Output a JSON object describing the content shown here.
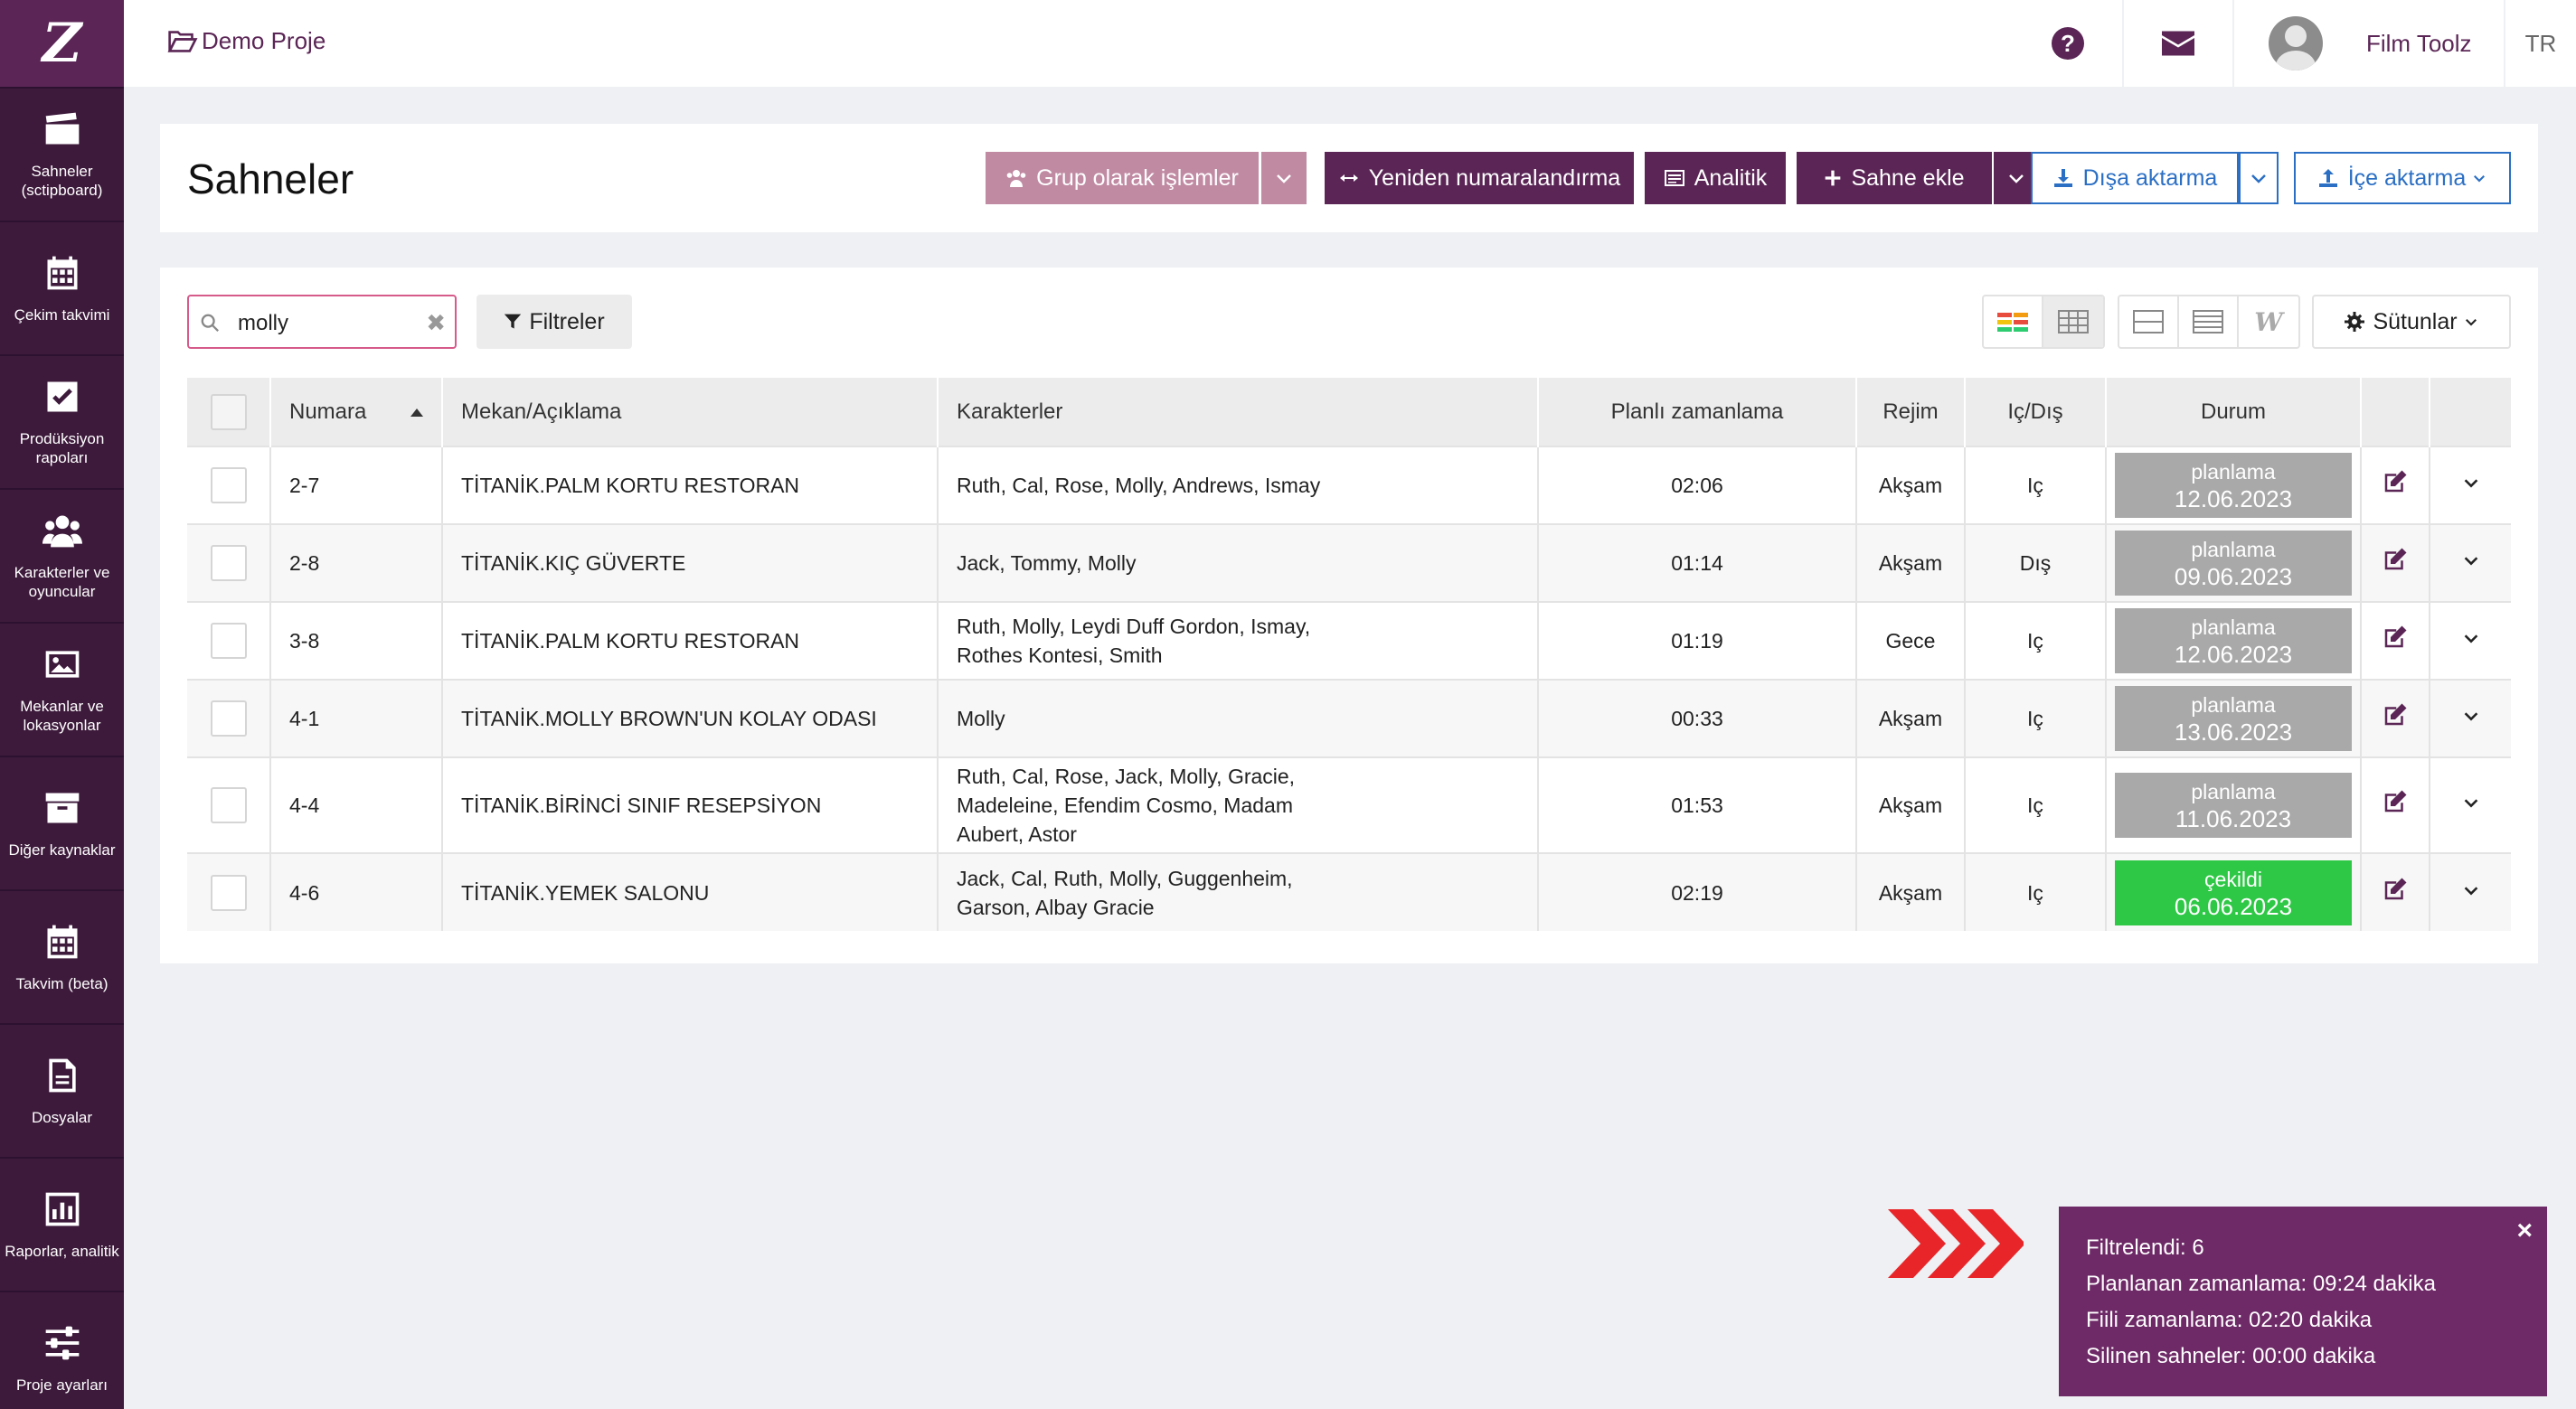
{
  "app": {
    "logo": "Z"
  },
  "sidebar": {
    "items": [
      {
        "label": "Sahneler (sctipboard)",
        "icon": "clapperboard-icon"
      },
      {
        "label": "Çekim takvimi",
        "icon": "calendar-icon"
      },
      {
        "label": "Prodüksiyon rapoları",
        "icon": "check-square-icon"
      },
      {
        "label": "Karakterler ve oyuncular",
        "icon": "users-icon"
      },
      {
        "label": "Mekanlar ve lokasyonlar",
        "icon": "image-icon"
      },
      {
        "label": "Diğer kaynaklar",
        "icon": "archive-icon"
      },
      {
        "label": "Takvim (beta)",
        "icon": "calendar-icon"
      },
      {
        "label": "Dosyalar",
        "icon": "file-icon"
      },
      {
        "label": "Raporlar, analitik",
        "icon": "bar-chart-icon"
      },
      {
        "label": "Proje ayarları",
        "icon": "sliders-icon"
      }
    ]
  },
  "topbar": {
    "project": "Demo Proje",
    "user": "Film Toolz",
    "lang": "TR",
    "help": "?"
  },
  "header": {
    "title": "Sahneler",
    "buttons": {
      "group": "Grup olarak işlemler",
      "renumber": "Yeniden numaralandırma",
      "analytics": "Analitik",
      "add": "Sahne ekle",
      "export": "Dışa aktarma",
      "import": "İçe aktarma"
    }
  },
  "toolbar": {
    "search_value": "molly",
    "clear": "✖",
    "filters": "Filtreler",
    "columns": "Sütunlar",
    "view_w": "W"
  },
  "table": {
    "headers": {
      "number": "Numara",
      "location": "Mekan/Açıklama",
      "characters": "Karakterler",
      "planned": "Planlı zamanlama",
      "mode": "Rejim",
      "inout": "Iç/Dış",
      "status": "Durum"
    },
    "rows": [
      {
        "number": "2-7",
        "location": "TİTANİK.PALM KORTU RESTORAN",
        "characters": "Ruth, Cal, Rose, Molly, Andrews, Ismay",
        "planned": "02:06",
        "mode": "Akşam",
        "inout": "Iç",
        "status": "planlama",
        "date": "12.06.2023"
      },
      {
        "number": "2-8",
        "location": "TİTANİK.KIÇ GÜVERTE",
        "characters": "Jaсk, Tommy, Molly",
        "planned": "01:14",
        "mode": "Akşam",
        "inout": "Dış",
        "status": "planlama",
        "date": "09.06.2023"
      },
      {
        "number": "3-8",
        "location": "TİTANİK.PALM KORTU RESTORAN",
        "characters": "Ruth, Molly, Leydi Duff Gordon, Ismay, Rothes Kontesi, Smith",
        "planned": "01:19",
        "mode": "Gece",
        "inout": "Iç",
        "status": "planlama",
        "date": "12.06.2023"
      },
      {
        "number": "4-1",
        "location": "TİTANİK.MOLLY BROWN'UN KOLAY ODASI",
        "characters": "Molly",
        "planned": "00:33",
        "mode": "Akşam",
        "inout": "Iç",
        "status": "planlama",
        "date": "13.06.2023"
      },
      {
        "number": "4-4",
        "location": "TİTANİK.BİRİNCİ SINIF RESEPSİYON",
        "characters": "Ruth, Cal, Rose, Jaсk, Molly, Gracie, Madeleine, Efendim Cosmo, Madam Aubert, Astor",
        "planned": "01:53",
        "mode": "Akşam",
        "inout": "Iç",
        "status": "planlama",
        "date": "11.06.2023"
      },
      {
        "number": "4-6",
        "location": "TİTANİK.YEMEK SALONU",
        "characters": "Jaсk, Cal, Ruth, Molly, Guggenheim, Garson, Albay Gracie",
        "planned": "02:19",
        "mode": "Akşam",
        "inout": "Iç",
        "status": "çekildi",
        "date": "06.06.2023"
      }
    ]
  },
  "notice": {
    "filtered": "Filtrelendi: 6",
    "planned": "Planlanan zamanlama: 09:24 dakika",
    "actual": "Fiili zamanlama: 02:20 dakika",
    "deleted": "Silinen sahneler: 00:00 dakika",
    "close": "×"
  },
  "colors": {
    "brand": "#5b2656",
    "sidebar": "#3d1a3b",
    "planned": "#a9a9a9",
    "shot": "#2ec846",
    "accent_blue": "#2b6fc4"
  }
}
